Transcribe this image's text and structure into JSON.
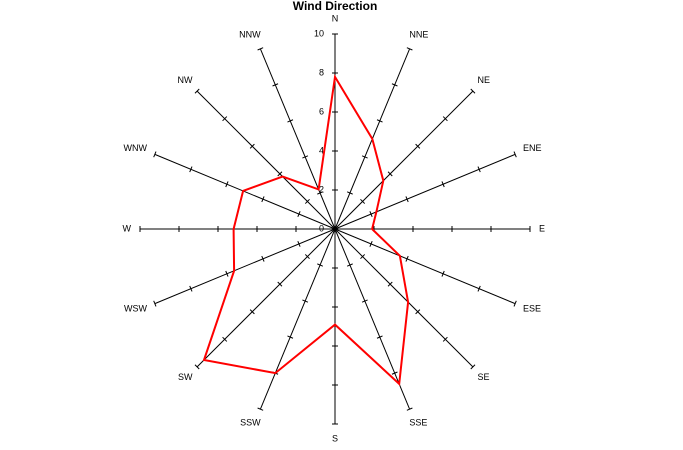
{
  "chart_data": {
    "type": "radar",
    "title": "Wind Direction",
    "categories": [
      "N",
      "NNE",
      "NE",
      "ENE",
      "E",
      "ESE",
      "SE",
      "SSE",
      "S",
      "SSW",
      "SW",
      "WSW",
      "W",
      "WNW",
      "NW",
      "NNW"
    ],
    "series": [
      {
        "name": "Wind Direction",
        "color": "#ff0000",
        "values": [
          7.8,
          5.0,
          3.5,
          2.3,
          1.9,
          3.6,
          5.3,
          8.6,
          4.9,
          8.0,
          9.5,
          5.6,
          5.2,
          5.1,
          3.8,
          2.2
        ]
      }
    ],
    "rlim": [
      0,
      10
    ],
    "rticks": [
      0,
      2,
      4,
      6,
      8,
      10
    ],
    "grid": false
  }
}
